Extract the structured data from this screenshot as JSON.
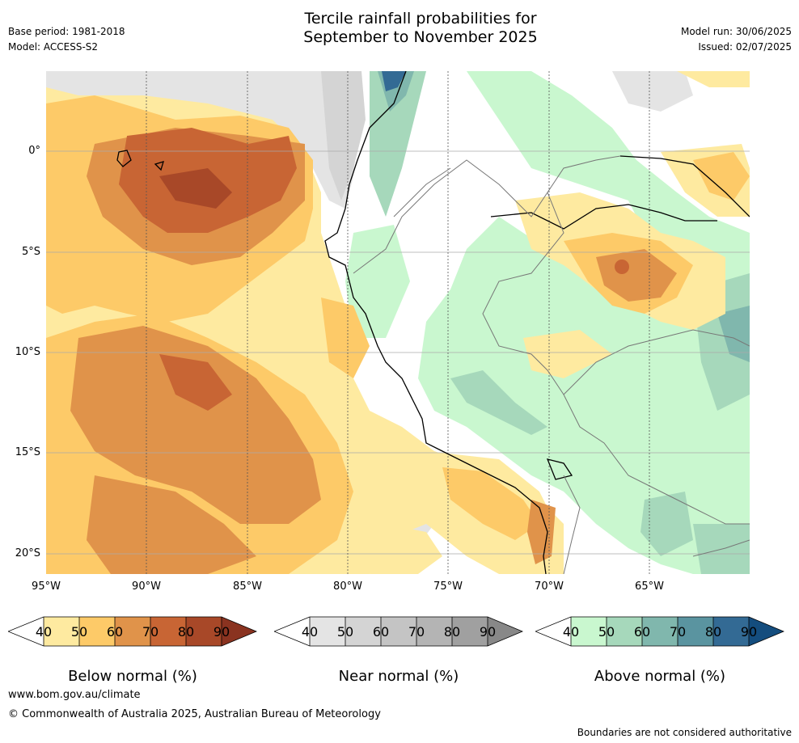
{
  "title": {
    "line1": "Tercile rainfall probabilities for",
    "line2": "September to November 2025"
  },
  "header": {
    "base_period": "Base period: 1981-2018",
    "model": "Model: ACCESS-S2",
    "model_run": "Model run: 30/06/2025",
    "issued": "Issued: 02/07/2025"
  },
  "map": {
    "lat_labels": [
      "0°",
      "5°S",
      "10°S",
      "15°S",
      "20°S"
    ],
    "lon_labels": [
      "95°W",
      "90°W",
      "85°W",
      "80°W",
      "75°W",
      "70°W",
      "65°W"
    ],
    "lat_range": [
      -21,
      4
    ],
    "lon_range": [
      -95,
      -60
    ]
  },
  "legends": [
    {
      "title": "Below normal (%)",
      "ticks": [
        "40",
        "50",
        "60",
        "70",
        "80",
        "90"
      ],
      "colors": [
        "#ffffff",
        "#feeaa0",
        "#fdca68",
        "#e0934a",
        "#c86534",
        "#a84828",
        "#8a3320"
      ]
    },
    {
      "title": "Near normal (%)",
      "ticks": [
        "40",
        "50",
        "60",
        "70",
        "80",
        "90"
      ],
      "colors": [
        "#ffffff",
        "#e4e4e4",
        "#d4d4d4",
        "#c4c4c4",
        "#b4b4b4",
        "#a0a0a0",
        "#888888"
      ]
    },
    {
      "title": "Above normal (%)",
      "ticks": [
        "40",
        "50",
        "60",
        "70",
        "80",
        "90"
      ],
      "colors": [
        "#ffffff",
        "#c9f7cf",
        "#a6d8bb",
        "#80b7ad",
        "#5a94a0",
        "#336a94",
        "#144d7e"
      ]
    }
  ],
  "footer": {
    "website": "www.bom.gov.au/climate",
    "copyright": "© Commonwealth of Australia 2025, Australian Bureau of Meteorology",
    "disclaimer": "Boundaries are not considered authoritative"
  }
}
